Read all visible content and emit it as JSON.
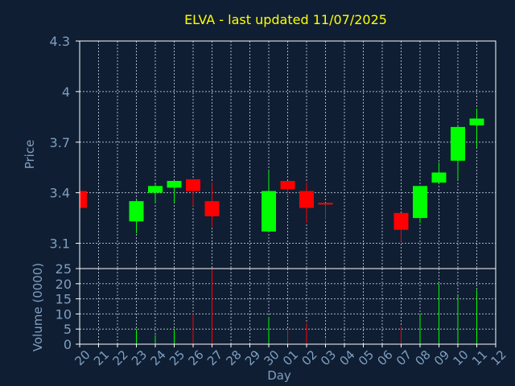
{
  "chart_data": {
    "type": "candlestick",
    "title": "ELVA - last updated 11/07/2025",
    "xlabel": "Day",
    "ylabel": "Price",
    "volume_label": "Volume (0000)",
    "price_ylim": [
      2.95,
      4.3
    ],
    "price_ticks": [
      "4.3",
      "4",
      "3.7",
      "3.4",
      "3.1"
    ],
    "volume_ylim": [
      0,
      25
    ],
    "volume_ticks": [
      "25",
      "20",
      "15",
      "10",
      "5",
      "0"
    ],
    "x_tick_labels": [
      "20",
      "21",
      "22",
      "23",
      "24",
      "25",
      "26",
      "27",
      "28",
      "29",
      "30",
      "01",
      "02",
      "03",
      "04",
      "05",
      "06",
      "07",
      "08",
      "09",
      "10",
      "11",
      "12"
    ],
    "grid": true,
    "colors": {
      "up": "#00ff00",
      "down": "#ff0000",
      "title": "#ffff00",
      "axis_text": "#7f9fbf",
      "grid": "#aab4c2",
      "frame": "#ffffff",
      "background": "#0f1e33"
    },
    "candles": [
      {
        "day": "20",
        "i": 0,
        "open": 3.41,
        "close": 3.31,
        "high": 3.41,
        "low": 3.31,
        "volume": 0
      },
      {
        "day": "23",
        "i": 3,
        "open": 3.23,
        "close": 3.35,
        "high": 3.36,
        "low": 3.16,
        "volume": 5
      },
      {
        "day": "24",
        "i": 4,
        "open": 3.4,
        "close": 3.44,
        "high": 3.45,
        "low": 3.34,
        "volume": 3
      },
      {
        "day": "25",
        "i": 5,
        "open": 3.43,
        "close": 3.47,
        "high": 3.47,
        "low": 3.34,
        "volume": 5
      },
      {
        "day": "26",
        "i": 6,
        "open": 3.48,
        "close": 3.41,
        "high": 3.48,
        "low": 3.32,
        "volume": 10
      },
      {
        "day": "27",
        "i": 7,
        "open": 3.35,
        "close": 3.26,
        "high": 3.46,
        "low": 3.2,
        "volume": 25
      },
      {
        "day": "30",
        "i": 10,
        "open": 3.17,
        "close": 3.41,
        "high": 3.53,
        "low": 3.17,
        "volume": 9
      },
      {
        "day": "01",
        "i": 11,
        "open": 3.47,
        "close": 3.42,
        "high": 3.47,
        "low": 3.38,
        "volume": 5
      },
      {
        "day": "02",
        "i": 12,
        "open": 3.41,
        "close": 3.31,
        "high": 3.46,
        "low": 3.22,
        "volume": 7
      },
      {
        "day": "03",
        "i": 13,
        "open": 3.34,
        "close": 3.33,
        "high": 3.34,
        "low": 3.24,
        "volume": 2
      },
      {
        "day": "07",
        "i": 17,
        "open": 3.28,
        "close": 3.18,
        "high": 3.28,
        "low": 3.11,
        "volume": 6
      },
      {
        "day": "08",
        "i": 18,
        "open": 3.25,
        "close": 3.44,
        "high": 3.44,
        "low": 3.22,
        "volume": 10
      },
      {
        "day": "09",
        "i": 19,
        "open": 3.46,
        "close": 3.52,
        "high": 3.58,
        "low": 3.46,
        "volume": 20
      },
      {
        "day": "10",
        "i": 20,
        "open": 3.59,
        "close": 3.79,
        "high": 3.8,
        "low": 3.48,
        "volume": 16
      },
      {
        "day": "11",
        "i": 21,
        "open": 3.8,
        "close": 3.84,
        "high": 3.9,
        "low": 3.67,
        "volume": 18
      }
    ]
  }
}
